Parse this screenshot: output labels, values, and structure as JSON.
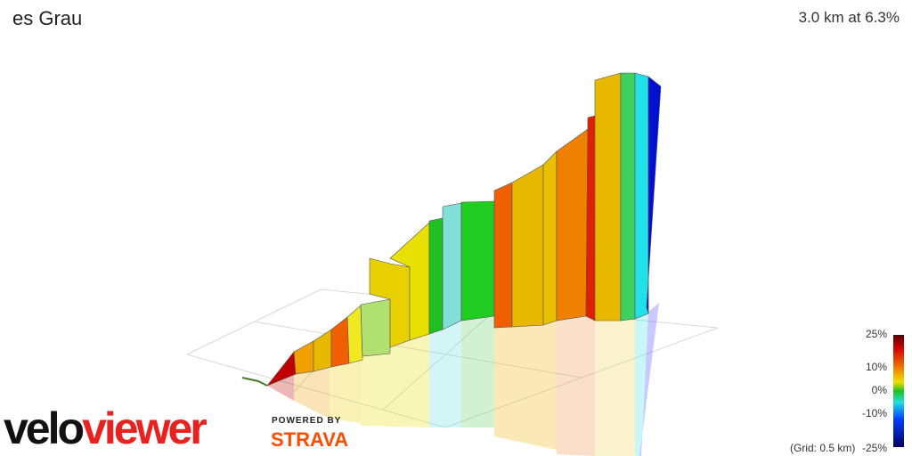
{
  "header": {
    "title": "es Grau",
    "stat": "3.0 km at 6.3%"
  },
  "legend": {
    "labels": [
      "25%",
      "10%",
      "0%",
      "-10%",
      "-25%"
    ],
    "grid_note": "(Grid: 0.5 km)"
  },
  "branding": {
    "logo_a": "velo",
    "logo_b": "viewer",
    "powered": "POWERED BY",
    "strava": "STRAVA"
  }
}
